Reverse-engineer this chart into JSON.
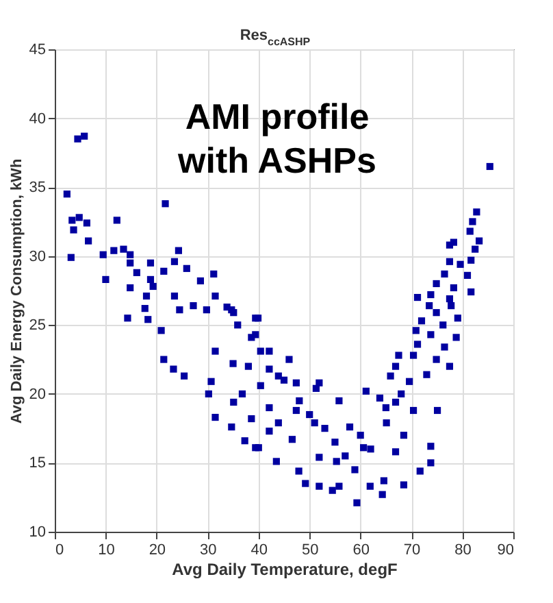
{
  "chart_data": {
    "type": "scatter",
    "title": "Res$_{ccASHP}$",
    "xlabel": "Avg Daily Temperature, degF",
    "ylabel": "Avg Daily Energy Consumption, kWh",
    "annotations": [
      "AMI profile\nwith ASHPs"
    ],
    "xlim": [
      0,
      90
    ],
    "xticks": [
      0,
      10,
      20,
      30,
      40,
      50,
      60,
      70,
      80,
      90
    ],
    "ylim": [
      10,
      45
    ],
    "yticks": [
      10,
      15,
      20,
      25,
      30,
      35,
      40,
      45
    ],
    "grid": true,
    "marker": "square",
    "series": [
      {
        "color": "#0000a0",
        "x": [
          2.4,
          4.5,
          5.8,
          85.4,
          21.7,
          3.4,
          6.3,
          3.7,
          4.8,
          6.6,
          3.2,
          12.2,
          9.5,
          10,
          11.6,
          13.5,
          14.8,
          14.8,
          16.1,
          18.8,
          14.8,
          14.3,
          18.8,
          19.3,
          21.4,
          24.3,
          23.5,
          25.9,
          28.6,
          31.2,
          18,
          17.7,
          18.3,
          20.9,
          21.4,
          23.3,
          25.4,
          35,
          31.5,
          23.5,
          24.5,
          27.2,
          29.8,
          33.8,
          31.5,
          39.4,
          35.1,
          38.6,
          40.4,
          42.1,
          40.4,
          36.8,
          30.7,
          30.2,
          31.5,
          34.7,
          37.3,
          39.4,
          35.1,
          38.6,
          42.1,
          43.5,
          40,
          47.9,
          49.2,
          51.9,
          54.5,
          55.8,
          59.3,
          61.9,
          64.3,
          64.6,
          68.5,
          71.7,
          73.8,
          73.8,
          75.1,
          55.8,
          61.1,
          42.1,
          46.6,
          51.9,
          55.3,
          58.9,
          60.6,
          66.9,
          68.5,
          65.1,
          70.4,
          57.9,
          51,
          47.4,
          43.9,
          82.8,
          82,
          81.5,
          83.3,
          77.5,
          78.3,
          82.5,
          77.5,
          79.6,
          81.7,
          76.5,
          81,
          74.9,
          78.3,
          81.7,
          71.2,
          73.8,
          77.5,
          77.8,
          73.5,
          74.9,
          79.1,
          72,
          76.2,
          70.9,
          73.8,
          78.8,
          71.2,
          76.5,
          67.5,
          70.4,
          74.9,
          77.5,
          66.9,
          65.9,
          69.6,
          73,
          63.8,
          66.9,
          51.3,
          51.9,
          47.4,
          46,
          43.9,
          39.9,
          34.7,
          35.9,
          39.4,
          42.1,
          38,
          45,
          50,
          55,
          57,
          60,
          62,
          65,
          68,
          53,
          48
        ],
        "values": [
          34.5,
          38.5,
          38.7,
          36.5,
          33.8,
          32.6,
          32.4,
          31.9,
          32.8,
          31.1,
          29.9,
          32.6,
          30.1,
          28.3,
          30.4,
          30.5,
          30.1,
          29.5,
          28.8,
          29.5,
          27.7,
          25.5,
          28.3,
          27.8,
          28.9,
          30.4,
          29.6,
          29.1,
          28.2,
          28.7,
          27.1,
          26.2,
          25.4,
          24.6,
          22.5,
          21.8,
          21.3,
          22.2,
          23.1,
          27.1,
          26.1,
          26.4,
          26.1,
          26.3,
          27.1,
          25.5,
          25.9,
          24.1,
          23.1,
          21.8,
          20.6,
          20,
          20.9,
          20,
          18.3,
          17.6,
          16.6,
          16.1,
          19.4,
          18.2,
          17.3,
          15.1,
          16.1,
          14.4,
          13.5,
          13.3,
          13,
          13.3,
          12.1,
          13.3,
          12.7,
          13.7,
          13.4,
          14.4,
          15,
          16.2,
          18.8,
          19.5,
          20.2,
          19,
          16.7,
          15.4,
          15.1,
          14.5,
          16.1,
          15.8,
          17,
          17.9,
          18.8,
          17.6,
          17.9,
          18.8,
          17.9,
          33.2,
          32.5,
          31.8,
          31.1,
          30.8,
          31,
          30.5,
          29.6,
          29.4,
          29.7,
          28.7,
          28.6,
          28,
          27.7,
          27.4,
          27,
          27.2,
          26.9,
          26.4,
          26.4,
          25.9,
          25.5,
          25.3,
          25,
          24.6,
          24.3,
          24.1,
          23.6,
          23.4,
          22.8,
          22.8,
          22.5,
          22,
          22,
          21.3,
          20.9,
          21.4,
          19.7,
          19.4,
          20.4,
          20.8,
          20.8,
          22.5,
          21.3,
          25.5,
          26.1,
          25,
          24.3,
          23.1,
          22,
          21,
          18.5,
          16.5,
          15.5,
          17,
          16,
          19,
          20,
          17.5,
          19.5
        ]
      }
    ]
  }
}
